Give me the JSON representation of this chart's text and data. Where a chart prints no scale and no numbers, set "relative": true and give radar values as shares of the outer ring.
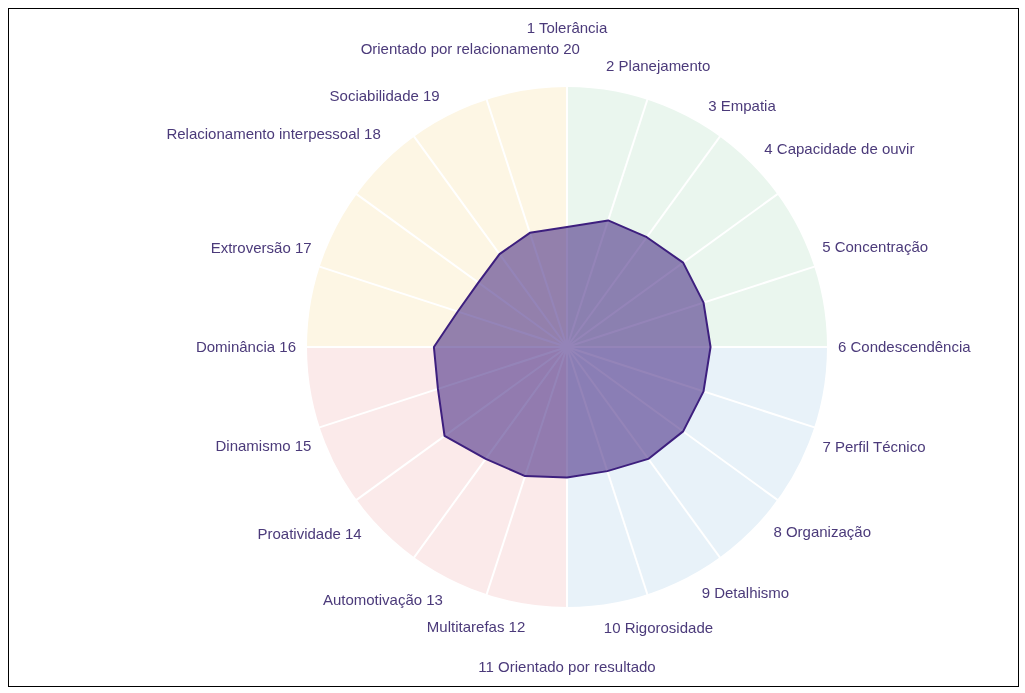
{
  "chart_data": {
    "type": "radar",
    "relative": true,
    "grid": true,
    "legend": false,
    "categories": [
      "1 Tolerância",
      "2 Planejamento",
      "3 Empatia",
      "4 Capacidade de ouvir",
      "5 Concentração",
      "6 Condescendência",
      "7 Perfil Técnico",
      "8 Organização",
      "9 Detalhismo",
      "10 Rigorosidade",
      "11 Orientado por resultado",
      "Multitarefas 12",
      "Automotivação 13",
      "Proatividade 14",
      "Dinamismo 15",
      "Dominância 16",
      "Extroversão 17",
      "Relacionamento interpessoal 18",
      "Sociabilidade 19",
      "Orientado por relacionamento 20"
    ],
    "series": [
      {
        "color": "#3d1f7e",
        "values": [
          0.46,
          0.51,
          0.52,
          0.55,
          0.55,
          0.55,
          0.55,
          0.55,
          0.53,
          0.5,
          0.5,
          0.52,
          0.53,
          0.58,
          0.52,
          0.51,
          0.44,
          0.42,
          0.44,
          0.46
        ]
      }
    ]
  }
}
